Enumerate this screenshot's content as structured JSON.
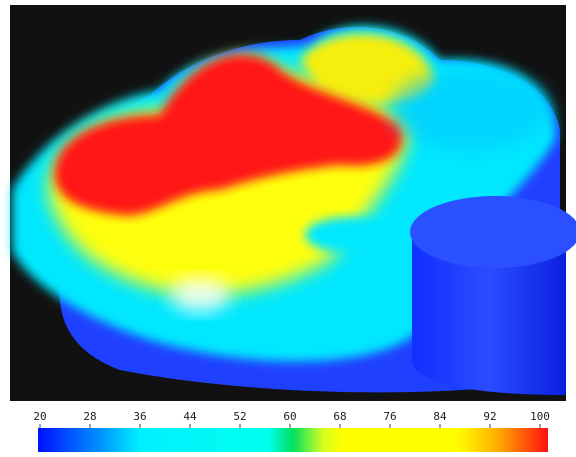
{
  "colorbar": {
    "range": [
      20,
      100
    ],
    "ticks": [
      20,
      28,
      36,
      44,
      52,
      60,
      68,
      76,
      84,
      92,
      100
    ]
  }
}
